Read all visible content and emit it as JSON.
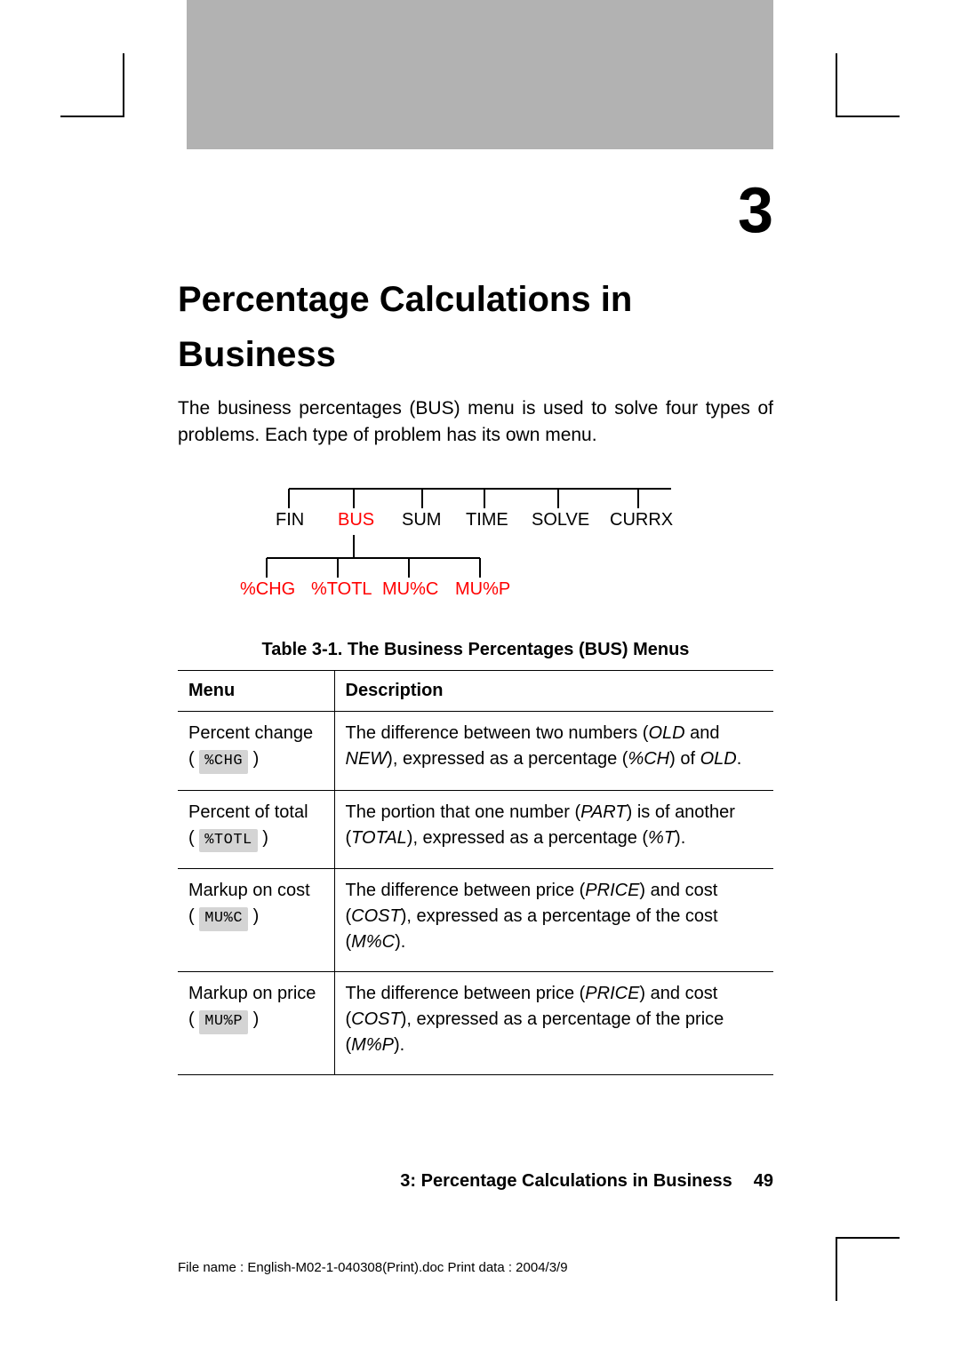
{
  "chapter_number": "3",
  "chapter_title": "Percentage Calculations in Business",
  "intro": "The business percentages (BUS) menu is used to solve four types of problems. Each type of problem has its own menu.",
  "tree": {
    "top_labels": [
      "FIN",
      "BUS",
      "SUM",
      "TIME",
      "SOLVE",
      "CURRX"
    ],
    "top_highlight_index": 1,
    "bottom_labels": [
      "%CHG",
      "%TOTL",
      "MU%C",
      "MU%P"
    ],
    "line_color": "#000000",
    "highlight_color": "#ff0000"
  },
  "table_caption": "Table 3-1. The Business Percentages (BUS) Menus",
  "table": {
    "headers": [
      "Menu",
      "Description"
    ],
    "rows": [
      {
        "menu_name": "Percent change",
        "keycap": "%CHG",
        "desc_parts": [
          "The difference between two numbers (",
          "OLD",
          " and ",
          "NEW",
          "), expressed as a percentage (",
          "%CH",
          ") of ",
          "OLD",
          "."
        ]
      },
      {
        "menu_name": "Percent of total",
        "keycap": "%TOTL",
        "desc_parts": [
          "The portion that one number (",
          "PART",
          ") is of another (",
          "TOTAL",
          "), expressed as a percentage (",
          "%T",
          ")."
        ]
      },
      {
        "menu_name": "Markup on cost",
        "keycap": "MU%C",
        "desc_parts": [
          "The difference between price (",
          "PRICE",
          ") and cost (",
          "COST",
          "), expressed as a percentage of the cost (",
          "M%C",
          ")."
        ]
      },
      {
        "menu_name": "Markup on price",
        "keycap": "MU%P",
        "desc_parts": [
          "The difference between price (",
          "PRICE",
          ") and cost (",
          "COST",
          "), expressed as a percentage of the price (",
          "M%P",
          ")."
        ]
      }
    ]
  },
  "footer": {
    "label": "3: Percentage Calculations in Business",
    "page": "49"
  },
  "print_meta": "File name : English-M02-1-040308(Print).doc    Print data : 2004/3/9"
}
